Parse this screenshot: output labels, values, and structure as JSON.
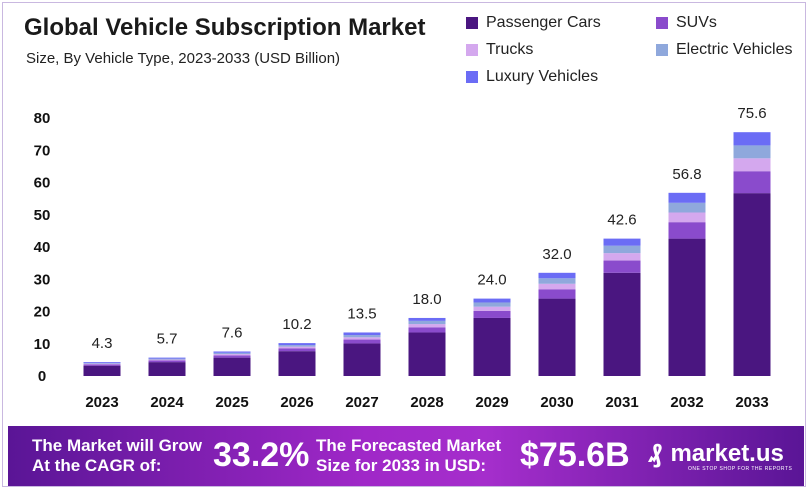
{
  "chart_data": {
    "type": "bar",
    "stacked": true,
    "title": "Global Vehicle Subscription Market",
    "subtitle": "Size, By Vehicle Type, 2023-2033 (USD Billion)",
    "categories": [
      "2023",
      "2024",
      "2025",
      "2026",
      "2027",
      "2028",
      "2029",
      "2030",
      "2031",
      "2032",
      "2033"
    ],
    "totals": [
      4.3,
      5.7,
      7.6,
      10.2,
      13.5,
      18.0,
      24.0,
      32.0,
      42.6,
      56.8,
      75.6
    ],
    "total_labels": [
      "4.3",
      "5.7",
      "7.6",
      "10.2",
      "13.5",
      "18.0",
      "24.0",
      "32.0",
      "42.6",
      "56.8",
      "75.6"
    ],
    "series": [
      {
        "name": "Passenger Cars",
        "color": "#4a1680",
        "values": [
          3.2,
          4.3,
          5.7,
          7.7,
          10.1,
          13.5,
          18.0,
          24.0,
          32.0,
          42.6,
          56.7
        ]
      },
      {
        "name": "SUVs",
        "color": "#8a4bcc",
        "values": [
          0.4,
          0.5,
          0.7,
          0.9,
          1.2,
          1.6,
          2.2,
          2.9,
          3.8,
          5.1,
          6.8
        ]
      },
      {
        "name": "Trucks",
        "color": "#d4a8ee",
        "values": [
          0.2,
          0.3,
          0.4,
          0.5,
          0.7,
          1.0,
          1.3,
          1.7,
          2.3,
          3.0,
          4.0
        ]
      },
      {
        "name": "Electric Vehicles",
        "color": "#8fa8dc",
        "values": [
          0.2,
          0.3,
          0.4,
          0.5,
          0.7,
          1.0,
          1.3,
          1.7,
          2.3,
          3.0,
          4.0
        ]
      },
      {
        "name": "Luxury Vehicles",
        "color": "#6b6cf5",
        "values": [
          0.3,
          0.3,
          0.4,
          0.6,
          0.8,
          0.9,
          1.2,
          1.7,
          2.2,
          3.1,
          4.1
        ]
      }
    ],
    "yticks": [
      "0",
      "10",
      "20",
      "30",
      "40",
      "50",
      "60",
      "70",
      "80"
    ],
    "ylim": [
      0,
      80
    ],
    "grid": false,
    "legend": "top-right"
  },
  "footer": {
    "cagr_label": [
      "The Market will Grow",
      "At the CAGR of:"
    ],
    "cagr_value": "33.2%",
    "forecast_label": [
      "The Forecasted Market",
      "Size for 2033 in USD:"
    ],
    "forecast_value": "$75.6B",
    "logo_text": "market.us",
    "logo_tagline": "ONE STOP SHOP FOR THE REPORTS"
  }
}
